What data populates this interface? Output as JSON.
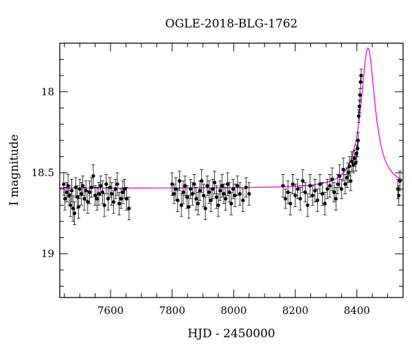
{
  "chart_data": {
    "type": "scatter",
    "title": "OGLE-2018-BLG-1762",
    "xlabel": "HJD - 2450000",
    "ylabel": "I magnitude",
    "xlim": [
      7435,
      8550
    ],
    "ylim": [
      19.27,
      17.7
    ],
    "y_inverted": true,
    "grid": false,
    "x_ticks": [
      7600,
      7800,
      8000,
      8200,
      8400
    ],
    "y_ticks": [
      18,
      18.5,
      19
    ],
    "x_tick_labels": [
      "7600",
      "7800",
      "8000",
      "8200",
      "8400"
    ],
    "y_tick_labels": [
      "18",
      "18.5",
      "19"
    ],
    "colors": {
      "data": "#000000",
      "model": "#e600e6",
      "frame": "#000000"
    },
    "series": [
      {
        "kind": "points_with_errorbars",
        "x": [
          7448,
          7452,
          7458,
          7462,
          7466,
          7470,
          7474,
          7478,
          7483,
          7487,
          7492,
          7496,
          7500,
          7505,
          7510,
          7515,
          7520,
          7526,
          7532,
          7538,
          7544,
          7550,
          7556,
          7562,
          7568,
          7574,
          7580,
          7586,
          7592,
          7598,
          7604,
          7610,
          7616,
          7622,
          7628,
          7634,
          7640,
          7646,
          7652,
          7660,
          7800,
          7806,
          7812,
          7818,
          7824,
          7830,
          7836,
          7842,
          7848,
          7854,
          7860,
          7866,
          7872,
          7878,
          7884,
          7890,
          7896,
          7902,
          7908,
          7914,
          7920,
          7926,
          7932,
          7938,
          7944,
          7950,
          7956,
          7962,
          7968,
          7974,
          7980,
          7986,
          7992,
          7998,
          8004,
          8012,
          8020,
          8030,
          8040,
          8050,
          8160,
          8168,
          8176,
          8184,
          8192,
          8200,
          8208,
          8216,
          8224,
          8232,
          8240,
          8248,
          8256,
          8264,
          8272,
          8280,
          8288,
          8296,
          8304,
          8312,
          8320,
          8326,
          8332,
          8338,
          8344,
          8350,
          8356,
          8362,
          8368,
          8372,
          8376,
          8380,
          8384,
          8388,
          8392,
          8396,
          8399,
          8402,
          8404,
          8406,
          8408,
          8410,
          8412,
          8414,
          8533,
          8536,
          8540
        ],
        "y": [
          18.57,
          18.66,
          18.62,
          18.58,
          18.64,
          18.7,
          18.61,
          18.72,
          18.75,
          18.59,
          18.65,
          18.71,
          18.6,
          18.63,
          18.58,
          18.66,
          18.61,
          18.68,
          18.62,
          18.59,
          18.52,
          18.64,
          18.66,
          18.63,
          18.58,
          18.62,
          18.7,
          18.57,
          18.66,
          18.59,
          18.63,
          18.68,
          18.6,
          18.57,
          18.69,
          18.66,
          18.62,
          18.6,
          18.66,
          18.72,
          18.57,
          18.63,
          18.6,
          18.67,
          18.55,
          18.7,
          18.62,
          18.58,
          18.65,
          18.71,
          18.6,
          18.63,
          18.57,
          18.66,
          18.69,
          18.61,
          18.55,
          18.64,
          18.72,
          18.58,
          18.62,
          18.67,
          18.6,
          18.56,
          18.65,
          18.7,
          18.61,
          18.58,
          18.63,
          18.66,
          18.57,
          18.62,
          18.69,
          18.6,
          18.64,
          18.58,
          18.63,
          18.67,
          18.59,
          18.63,
          18.58,
          18.66,
          18.62,
          18.69,
          18.57,
          18.64,
          18.6,
          18.66,
          18.55,
          18.62,
          18.7,
          18.58,
          18.64,
          18.61,
          18.67,
          18.57,
          18.63,
          18.69,
          18.6,
          18.58,
          18.54,
          18.62,
          18.66,
          18.57,
          18.52,
          18.6,
          18.48,
          18.57,
          18.53,
          18.5,
          18.46,
          18.55,
          18.43,
          18.45,
          18.41,
          18.44,
          18.38,
          18.35,
          18.3,
          18.15,
          18.09,
          18.02,
          17.94,
          17.9,
          18.6,
          18.64,
          18.55
        ],
        "err": [
          0.07,
          0.07,
          0.06,
          0.07,
          0.06,
          0.07,
          0.07,
          0.08,
          0.07,
          0.06,
          0.07,
          0.07,
          0.06,
          0.07,
          0.06,
          0.07,
          0.06,
          0.07,
          0.07,
          0.06,
          0.07,
          0.06,
          0.07,
          0.07,
          0.06,
          0.07,
          0.07,
          0.06,
          0.07,
          0.06,
          0.07,
          0.07,
          0.06,
          0.07,
          0.07,
          0.06,
          0.07,
          0.06,
          0.07,
          0.07,
          0.07,
          0.06,
          0.07,
          0.07,
          0.06,
          0.07,
          0.07,
          0.06,
          0.07,
          0.07,
          0.06,
          0.07,
          0.06,
          0.07,
          0.07,
          0.06,
          0.07,
          0.07,
          0.07,
          0.06,
          0.07,
          0.07,
          0.06,
          0.07,
          0.07,
          0.07,
          0.06,
          0.07,
          0.06,
          0.07,
          0.07,
          0.06,
          0.07,
          0.06,
          0.07,
          0.06,
          0.07,
          0.07,
          0.06,
          0.07,
          0.07,
          0.06,
          0.07,
          0.07,
          0.06,
          0.07,
          0.06,
          0.07,
          0.07,
          0.06,
          0.07,
          0.07,
          0.06,
          0.07,
          0.07,
          0.06,
          0.07,
          0.07,
          0.06,
          0.07,
          0.07,
          0.06,
          0.07,
          0.06,
          0.07,
          0.06,
          0.07,
          0.06,
          0.06,
          0.06,
          0.06,
          0.06,
          0.06,
          0.05,
          0.05,
          0.05,
          0.05,
          0.05,
          0.05,
          0.04,
          0.04,
          0.04,
          0.04,
          0.04,
          0.06,
          0.06,
          0.06
        ]
      },
      {
        "kind": "model_curve",
        "baseline": 18.595,
        "t0": 8436,
        "peak": 17.73,
        "tau": 28
      }
    ]
  }
}
